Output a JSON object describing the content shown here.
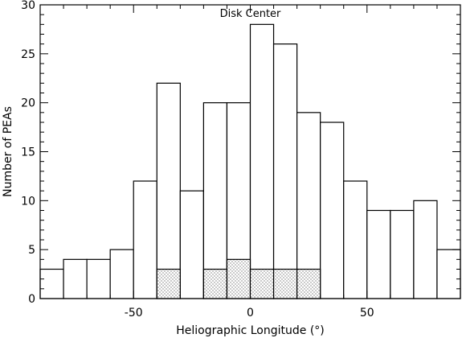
{
  "chart_data": {
    "type": "bar",
    "title": "Disk Center",
    "xlabel": "Heliographic Longitude (°)",
    "ylabel": "Number of PEAs",
    "xlim": [
      -90,
      90
    ],
    "ylim": [
      0,
      30
    ],
    "xticks": [
      -50,
      0,
      50
    ],
    "yticks": [
      0,
      5,
      10,
      15,
      20,
      25,
      30
    ],
    "bin_width": 10,
    "series": [
      {
        "values": [
          {
            "x0": -90,
            "x1": -80,
            "y": 3
          },
          {
            "x0": -80,
            "x1": -70,
            "y": 4
          },
          {
            "x0": -70,
            "x1": -60,
            "y": 4
          },
          {
            "x0": -60,
            "x1": -50,
            "y": 5
          },
          {
            "x0": -50,
            "x1": -40,
            "y": 12
          },
          {
            "x0": -40,
            "x1": -30,
            "y": 22
          },
          {
            "x0": -30,
            "x1": -20,
            "y": 11
          },
          {
            "x0": -20,
            "x1": -10,
            "y": 20
          },
          {
            "x0": -10,
            "x1": 0,
            "y": 20
          },
          {
            "x0": 0,
            "x1": 10,
            "y": 28
          },
          {
            "x0": 10,
            "x1": 20,
            "y": 26
          },
          {
            "x0": 20,
            "x1": 30,
            "y": 19
          },
          {
            "x0": 30,
            "x1": 40,
            "y": 18
          },
          {
            "x0": 40,
            "x1": 50,
            "y": 12
          },
          {
            "x0": 50,
            "x1": 60,
            "y": 9
          },
          {
            "x0": 60,
            "x1": 70,
            "y": 9
          },
          {
            "x0": 70,
            "x1": 80,
            "y": 10
          },
          {
            "x0": 80,
            "x1": 90,
            "y": 5
          }
        ]
      },
      {
        "pattern": "dotted",
        "values": [
          {
            "x0": -40,
            "x1": -30,
            "y": 3
          },
          {
            "x0": -20,
            "x1": -10,
            "y": 3
          },
          {
            "x0": -10,
            "x1": 0,
            "y": 4
          },
          {
            "x0": 0,
            "x1": 10,
            "y": 3
          },
          {
            "x0": 10,
            "x1": 20,
            "y": 3
          },
          {
            "x0": 20,
            "x1": 30,
            "y": 3
          }
        ]
      }
    ],
    "grid": false,
    "legend": "none"
  }
}
